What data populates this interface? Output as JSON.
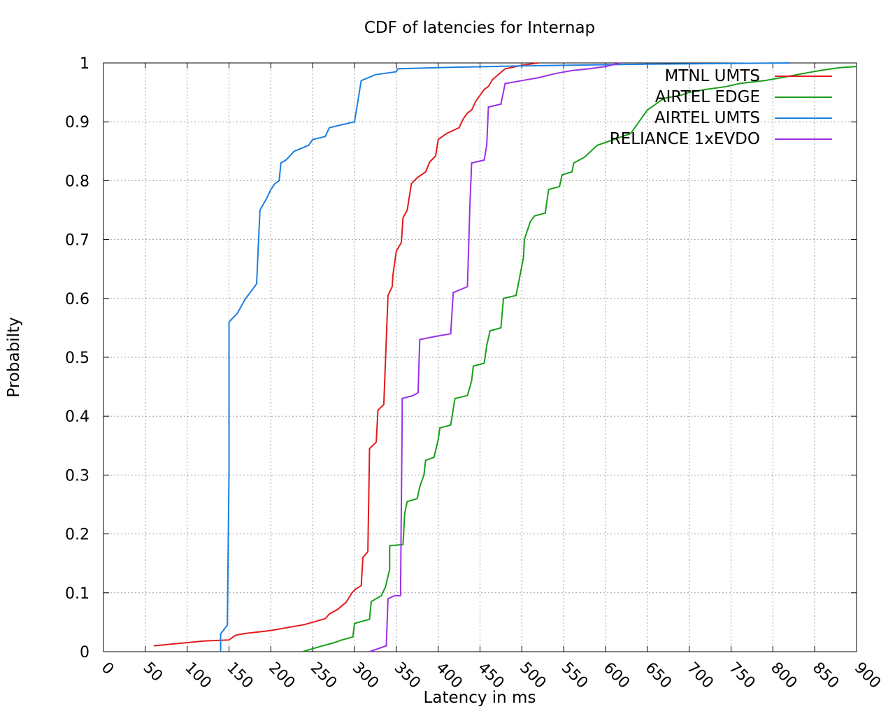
{
  "chart_data": {
    "type": "line",
    "title": "CDF of latencies for Internap",
    "xlabel": "Latency in ms",
    "ylabel": "Probabilty",
    "xlim": [
      0,
      900
    ],
    "ylim": [
      0,
      1
    ],
    "xticks": [
      0,
      50,
      100,
      150,
      200,
      250,
      300,
      350,
      400,
      450,
      500,
      550,
      600,
      650,
      700,
      750,
      800,
      850,
      900
    ],
    "yticks": [
      0,
      0.1,
      0.2,
      0.3,
      0.4,
      0.5,
      0.6,
      0.7,
      0.8,
      0.9,
      1
    ],
    "grid": true,
    "legend_position": "top-right",
    "series": [
      {
        "name": "MTNL UMTS",
        "color": "#e41a1c",
        "points": [
          [
            60,
            0.01
          ],
          [
            120,
            0.018
          ],
          [
            150,
            0.02
          ],
          [
            158,
            0.028
          ],
          [
            170,
            0.031
          ],
          [
            200,
            0.036
          ],
          [
            240,
            0.046
          ],
          [
            265,
            0.056
          ],
          [
            270,
            0.064
          ],
          [
            280,
            0.072
          ],
          [
            290,
            0.084
          ],
          [
            297,
            0.1
          ],
          [
            302,
            0.107
          ],
          [
            308,
            0.112
          ],
          [
            310,
            0.16
          ],
          [
            316,
            0.17
          ],
          [
            318,
            0.345
          ],
          [
            326,
            0.356
          ],
          [
            328,
            0.41
          ],
          [
            335,
            0.42
          ],
          [
            340,
            0.605
          ],
          [
            345,
            0.62
          ],
          [
            346,
            0.64
          ],
          [
            350,
            0.68
          ],
          [
            356,
            0.695
          ],
          [
            358,
            0.737
          ],
          [
            363,
            0.75
          ],
          [
            368,
            0.795
          ],
          [
            375,
            0.805
          ],
          [
            385,
            0.815
          ],
          [
            390,
            0.832
          ],
          [
            397,
            0.842
          ],
          [
            400,
            0.87
          ],
          [
            410,
            0.88
          ],
          [
            425,
            0.89
          ],
          [
            430,
            0.905
          ],
          [
            435,
            0.915
          ],
          [
            440,
            0.92
          ],
          [
            445,
            0.935
          ],
          [
            450,
            0.945
          ],
          [
            455,
            0.955
          ],
          [
            460,
            0.96
          ],
          [
            465,
            0.972
          ],
          [
            480,
            0.99
          ],
          [
            500,
            0.996
          ],
          [
            520,
            1.0
          ]
        ]
      },
      {
        "name": "AIRTEL EDGE",
        "color": "#1a9e1a",
        "points": [
          [
            238,
            0.0
          ],
          [
            250,
            0.005
          ],
          [
            262,
            0.01
          ],
          [
            275,
            0.015
          ],
          [
            285,
            0.02
          ],
          [
            298,
            0.025
          ],
          [
            300,
            0.048
          ],
          [
            318,
            0.055
          ],
          [
            320,
            0.085
          ],
          [
            332,
            0.095
          ],
          [
            337,
            0.11
          ],
          [
            342,
            0.14
          ],
          [
            342,
            0.18
          ],
          [
            358,
            0.182
          ],
          [
            360,
            0.235
          ],
          [
            363,
            0.255
          ],
          [
            375,
            0.26
          ],
          [
            378,
            0.28
          ],
          [
            383,
            0.3
          ],
          [
            385,
            0.325
          ],
          [
            395,
            0.33
          ],
          [
            400,
            0.36
          ],
          [
            402,
            0.38
          ],
          [
            415,
            0.385
          ],
          [
            420,
            0.43
          ],
          [
            435,
            0.435
          ],
          [
            440,
            0.46
          ],
          [
            442,
            0.485
          ],
          [
            455,
            0.49
          ],
          [
            458,
            0.52
          ],
          [
            462,
            0.545
          ],
          [
            475,
            0.55
          ],
          [
            478,
            0.6
          ],
          [
            493,
            0.605
          ],
          [
            498,
            0.64
          ],
          [
            502,
            0.67
          ],
          [
            503,
            0.7
          ],
          [
            510,
            0.73
          ],
          [
            515,
            0.74
          ],
          [
            528,
            0.745
          ],
          [
            532,
            0.785
          ],
          [
            545,
            0.79
          ],
          [
            548,
            0.81
          ],
          [
            560,
            0.815
          ],
          [
            562,
            0.83
          ],
          [
            575,
            0.84
          ],
          [
            590,
            0.86
          ],
          [
            610,
            0.87
          ],
          [
            630,
            0.88
          ],
          [
            640,
            0.9
          ],
          [
            650,
            0.92
          ],
          [
            660,
            0.93
          ],
          [
            670,
            0.94
          ],
          [
            690,
            0.945
          ],
          [
            700,
            0.95
          ],
          [
            720,
            0.955
          ],
          [
            745,
            0.96
          ],
          [
            760,
            0.965
          ],
          [
            790,
            0.97
          ],
          [
            810,
            0.975
          ],
          [
            840,
            0.983
          ],
          [
            860,
            0.988
          ],
          [
            880,
            0.992
          ],
          [
            900,
            0.994
          ]
        ]
      },
      {
        "name": "AIRTEL UMTS",
        "color": "#1a7fe0",
        "points": [
          [
            140,
            0.0
          ],
          [
            140,
            0.03
          ],
          [
            148,
            0.045
          ],
          [
            150,
            0.3
          ],
          [
            150,
            0.56
          ],
          [
            160,
            0.575
          ],
          [
            170,
            0.6
          ],
          [
            178,
            0.615
          ],
          [
            183,
            0.625
          ],
          [
            187,
            0.75
          ],
          [
            195,
            0.77
          ],
          [
            200,
            0.785
          ],
          [
            205,
            0.795
          ],
          [
            210,
            0.8
          ],
          [
            212,
            0.83
          ],
          [
            218,
            0.835
          ],
          [
            228,
            0.85
          ],
          [
            245,
            0.86
          ],
          [
            250,
            0.87
          ],
          [
            265,
            0.875
          ],
          [
            270,
            0.89
          ],
          [
            300,
            0.9
          ],
          [
            308,
            0.97
          ],
          [
            325,
            0.98
          ],
          [
            350,
            0.985
          ],
          [
            352,
            0.99
          ],
          [
            400,
            0.992
          ],
          [
            500,
            0.995
          ],
          [
            650,
            0.998
          ],
          [
            820,
            1.0
          ]
        ]
      },
      {
        "name": "RELIANCE 1xEVDO",
        "color": "#9b30e6",
        "points": [
          [
            318,
            0.0
          ],
          [
            338,
            0.01
          ],
          [
            340,
            0.09
          ],
          [
            348,
            0.095
          ],
          [
            355,
            0.095
          ],
          [
            357,
            0.4
          ],
          [
            357,
            0.43
          ],
          [
            370,
            0.435
          ],
          [
            376,
            0.44
          ],
          [
            378,
            0.53
          ],
          [
            395,
            0.535
          ],
          [
            415,
            0.54
          ],
          [
            418,
            0.61
          ],
          [
            435,
            0.62
          ],
          [
            438,
            0.76
          ],
          [
            440,
            0.83
          ],
          [
            455,
            0.835
          ],
          [
            458,
            0.86
          ],
          [
            460,
            0.925
          ],
          [
            475,
            0.93
          ],
          [
            480,
            0.965
          ],
          [
            500,
            0.97
          ],
          [
            520,
            0.975
          ],
          [
            540,
            0.982
          ],
          [
            560,
            0.987
          ],
          [
            580,
            0.99
          ],
          [
            600,
            0.994
          ],
          [
            618,
            1.0
          ]
        ]
      }
    ]
  }
}
